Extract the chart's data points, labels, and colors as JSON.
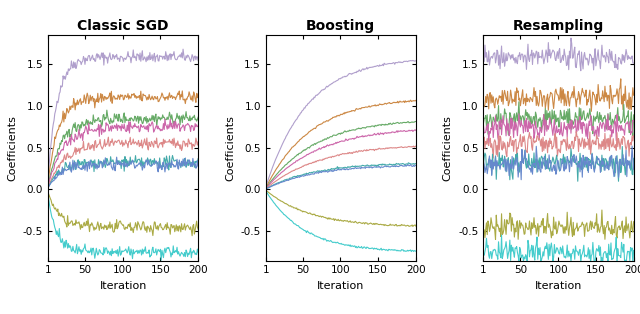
{
  "titles": [
    "Classic SGD",
    "Boosting",
    "Resampling"
  ],
  "xlabel": "Iteration",
  "ylabel": "Coefficients",
  "n_iter": 200,
  "ylim": [
    -0.85,
    1.85
  ],
  "yticks": [
    -0.5,
    0.0,
    0.5,
    1.0,
    1.5
  ],
  "xticks": [
    1,
    50,
    100,
    150,
    200
  ],
  "final_values": [
    1.58,
    1.1,
    0.85,
    0.75,
    0.55,
    0.32,
    0.3,
    -0.45,
    -0.75
  ],
  "colors": [
    "#b09fcc",
    "#cc8844",
    "#66aa66",
    "#cc66aa",
    "#dd8888",
    "#44aaaa",
    "#6688cc",
    "#aaaa44",
    "#44cccc"
  ],
  "sgd_converge_speed": [
    12,
    14,
    18,
    20,
    22,
    16,
    17,
    14,
    11
  ],
  "boost_converge_speed": [
    55,
    60,
    65,
    70,
    72,
    62,
    65,
    58,
    50
  ],
  "noise_std": 0.035,
  "resampling_noise_std": 0.07,
  "background_color": "#ffffff",
  "title_fontsize": 10,
  "label_fontsize": 8,
  "tick_fontsize": 7.5,
  "linewidth": 0.8
}
